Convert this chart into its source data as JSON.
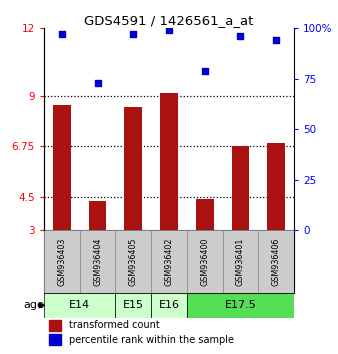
{
  "title": "GDS4591 / 1426561_a_at",
  "samples": [
    "GSM936403",
    "GSM936404",
    "GSM936405",
    "GSM936402",
    "GSM936400",
    "GSM936401",
    "GSM936406"
  ],
  "transformed_count": [
    8.6,
    4.3,
    8.5,
    9.1,
    4.4,
    6.75,
    6.9
  ],
  "percentile_rank": [
    97,
    73,
    97,
    99,
    79,
    96,
    94
  ],
  "age_groups": [
    {
      "label": "E14",
      "start": 0,
      "end": 2,
      "color": "#ccffcc"
    },
    {
      "label": "E15",
      "start": 2,
      "end": 3,
      "color": "#ccffcc"
    },
    {
      "label": "E16",
      "start": 3,
      "end": 4,
      "color": "#ccffcc"
    },
    {
      "label": "E17.5",
      "start": 4,
      "end": 7,
      "color": "#55dd55"
    }
  ],
  "ylim_left": [
    3,
    12
  ],
  "yticks_left": [
    3,
    4.5,
    6.75,
    9,
    12
  ],
  "ytick_labels_left": [
    "3",
    "4.5",
    "6.75",
    "9",
    "12"
  ],
  "ylim_right": [
    0,
    100
  ],
  "yticks_right": [
    0,
    25,
    50,
    75,
    100
  ],
  "ytick_labels_right": [
    "0",
    "25",
    "50",
    "75",
    "100%"
  ],
  "bar_color": "#aa1111",
  "scatter_color": "#0000cc",
  "bar_width": 0.5,
  "dotted_line_y": [
    4.5,
    6.75,
    9
  ],
  "legend_bar_label": "transformed count",
  "legend_scatter_label": "percentile rank within the sample",
  "age_label": "age",
  "background_color": "#ffffff",
  "sample_bg_color": "#cccccc",
  "age_e14_e16_color": "#ccffcc",
  "age_e175_color": "#55dd55"
}
